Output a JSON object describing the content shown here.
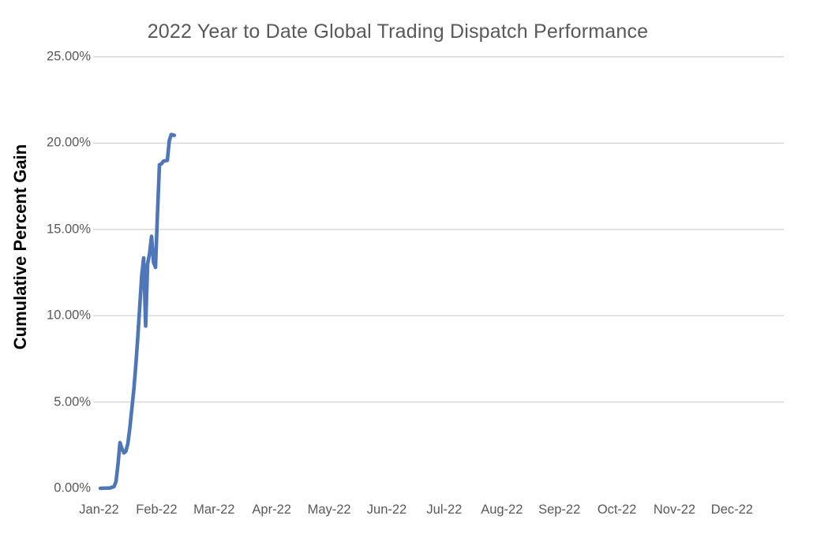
{
  "chart_data": {
    "type": "line",
    "title": "2022 Year to Date Global Trading Dispatch Performance",
    "ylabel": "Cumulative Percent Gain",
    "xlabel": "",
    "legend": "none",
    "grid": "horizontal",
    "ylim": [
      0,
      25
    ],
    "y_ticks": [
      {
        "value": 0,
        "label": "0.00%"
      },
      {
        "value": 5,
        "label": "5.00%"
      },
      {
        "value": 10,
        "label": "10.00%"
      },
      {
        "value": 15,
        "label": "15.00%"
      },
      {
        "value": 20,
        "label": "20.00%"
      },
      {
        "value": 25,
        "label": "25.00%"
      }
    ],
    "gridline_values": [
      5,
      10,
      15,
      20,
      25
    ],
    "x_tick_labels": [
      "Jan-22",
      "Feb-22",
      "Mar-22",
      "Apr-22",
      "May-22",
      "Jun-22",
      "Jul-22",
      "Aug-22",
      "Sep-22",
      "Oct-22",
      "Nov-22",
      "Dec-22"
    ],
    "x_range_note": "full-year date axis Jan-22 through Dec-22; data plotted only Jan 1 to Feb 7",
    "series": [
      {
        "name": "Cumulative Percent Gain",
        "color": "#4E76B8",
        "points": [
          {
            "day": 0,
            "date": "Jan 1",
            "value": 0.0
          },
          {
            "day": 5,
            "date": "Jan 6",
            "value": 0.02
          },
          {
            "day": 7,
            "date": "Jan 8",
            "value": 0.1
          },
          {
            "day": 8,
            "date": "Jan 9",
            "value": 0.4
          },
          {
            "day": 9,
            "date": "Jan 10",
            "value": 1.4
          },
          {
            "day": 10,
            "date": "Jan 11",
            "value": 2.65
          },
          {
            "day": 11,
            "date": "Jan 12",
            "value": 2.3
          },
          {
            "day": 12,
            "date": "Jan 13",
            "value": 2.05
          },
          {
            "day": 13,
            "date": "Jan 14",
            "value": 2.15
          },
          {
            "day": 14,
            "date": "Jan 15",
            "value": 2.6
          },
          {
            "day": 15,
            "date": "Jan 16",
            "value": 3.5
          },
          {
            "day": 16,
            "date": "Jan 17",
            "value": 4.6
          },
          {
            "day": 17,
            "date": "Jan 18",
            "value": 5.7
          },
          {
            "day": 18,
            "date": "Jan 19",
            "value": 7.1
          },
          {
            "day": 19,
            "date": "Jan 20",
            "value": 8.7
          },
          {
            "day": 20,
            "date": "Jan 21",
            "value": 10.5
          },
          {
            "day": 21,
            "date": "Jan 22",
            "value": 12.3
          },
          {
            "day": 22,
            "date": "Jan 23",
            "value": 13.35
          },
          {
            "day": 23,
            "date": "Jan 24",
            "value": 9.4
          },
          {
            "day": 24,
            "date": "Jan 25",
            "value": 13.0
          },
          {
            "day": 25,
            "date": "Jan 26",
            "value": 13.6
          },
          {
            "day": 26,
            "date": "Jan 27",
            "value": 14.6
          },
          {
            "day": 27,
            "date": "Jan 28",
            "value": 13.1
          },
          {
            "day": 28,
            "date": "Jan 29",
            "value": 12.8
          },
          {
            "day": 29,
            "date": "Jan 30",
            "value": 15.9
          },
          {
            "day": 30,
            "date": "Jan 31",
            "value": 18.75
          },
          {
            "day": 31,
            "date": "Feb 1",
            "value": 18.8
          },
          {
            "day": 32,
            "date": "Feb 2",
            "value": 18.95
          },
          {
            "day": 34,
            "date": "Feb 4",
            "value": 19.0
          },
          {
            "day": 35,
            "date": "Feb 5",
            "value": 20.15
          },
          {
            "day": 36,
            "date": "Feb 6",
            "value": 20.5
          },
          {
            "day": 37.5,
            "date": "Feb 7",
            "value": 20.45
          }
        ]
      }
    ],
    "colors": {
      "line": "#4E76B8",
      "gridline": "#D6D6D6",
      "title_text": "#595959",
      "tick_text": "#595959",
      "axis_title_text": "#000000",
      "background": "#FFFFFF"
    }
  }
}
